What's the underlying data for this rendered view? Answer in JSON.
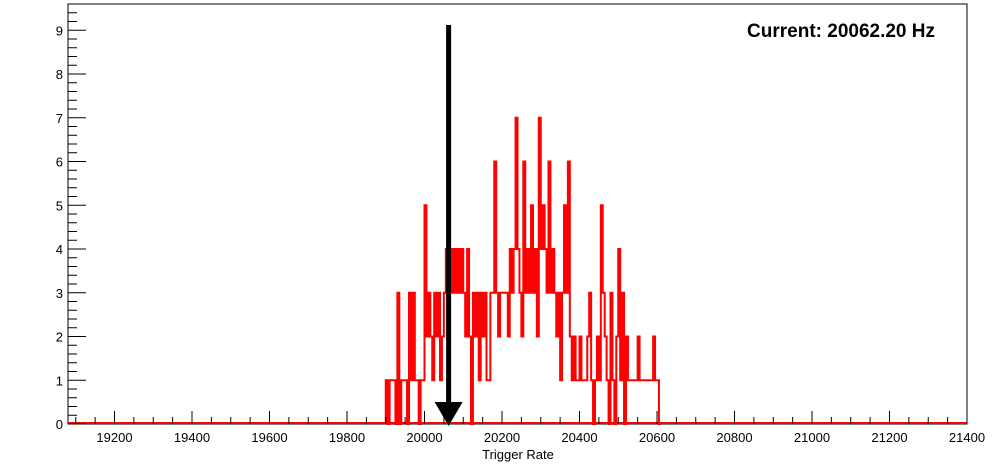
{
  "chart_data": {
    "type": "histogram",
    "title": "",
    "annotation": "Current: 20062.20 Hz",
    "xlabel": "Trigger Rate",
    "ylabel": "",
    "xlim": [
      19080,
      21400
    ],
    "ylim": [
      0,
      9.6
    ],
    "x_ticks": [
      19200,
      19400,
      19600,
      19800,
      20000,
      20200,
      20400,
      20600,
      20800,
      21000,
      21200,
      21400
    ],
    "y_ticks": [
      0,
      1,
      2,
      3,
      4,
      5,
      6,
      7,
      8,
      9
    ],
    "grid": false,
    "legend": "none",
    "marker": {
      "x": 20062.2,
      "label": "current rate arrow"
    },
    "series": [
      {
        "color": "#ff0000",
        "bin_width": 5,
        "bins": [
          {
            "x": 19900,
            "y": 1
          },
          {
            "x": 19905,
            "y": 0
          },
          {
            "x": 19910,
            "y": 1
          },
          {
            "x": 19915,
            "y": 1
          },
          {
            "x": 19920,
            "y": 1
          },
          {
            "x": 19925,
            "y": 0
          },
          {
            "x": 19930,
            "y": 3
          },
          {
            "x": 19935,
            "y": 0
          },
          {
            "x": 19940,
            "y": 1
          },
          {
            "x": 19945,
            "y": 1
          },
          {
            "x": 19950,
            "y": 1
          },
          {
            "x": 19955,
            "y": 0
          },
          {
            "x": 19960,
            "y": 3
          },
          {
            "x": 19965,
            "y": 1
          },
          {
            "x": 19970,
            "y": 3
          },
          {
            "x": 19975,
            "y": 1
          },
          {
            "x": 19980,
            "y": 1
          },
          {
            "x": 19985,
            "y": 0
          },
          {
            "x": 19990,
            "y": 1
          },
          {
            "x": 19995,
            "y": 1
          },
          {
            "x": 20000,
            "y": 5
          },
          {
            "x": 20005,
            "y": 2
          },
          {
            "x": 20010,
            "y": 3
          },
          {
            "x": 20015,
            "y": 2
          },
          {
            "x": 20020,
            "y": 1
          },
          {
            "x": 20025,
            "y": 3
          },
          {
            "x": 20030,
            "y": 2
          },
          {
            "x": 20035,
            "y": 3
          },
          {
            "x": 20040,
            "y": 1
          },
          {
            "x": 20045,
            "y": 2
          },
          {
            "x": 20050,
            "y": 3
          },
          {
            "x": 20055,
            "y": 4
          },
          {
            "x": 20060,
            "y": 3
          },
          {
            "x": 20065,
            "y": 4
          },
          {
            "x": 20070,
            "y": 3
          },
          {
            "x": 20075,
            "y": 4
          },
          {
            "x": 20080,
            "y": 3
          },
          {
            "x": 20085,
            "y": 4
          },
          {
            "x": 20090,
            "y": 3
          },
          {
            "x": 20095,
            "y": 4
          },
          {
            "x": 20100,
            "y": 3
          },
          {
            "x": 20105,
            "y": 2
          },
          {
            "x": 20110,
            "y": 4
          },
          {
            "x": 20115,
            "y": 2
          },
          {
            "x": 20120,
            "y": 0
          },
          {
            "x": 20125,
            "y": 3
          },
          {
            "x": 20130,
            "y": 2
          },
          {
            "x": 20135,
            "y": 3
          },
          {
            "x": 20140,
            "y": 1
          },
          {
            "x": 20145,
            "y": 3
          },
          {
            "x": 20150,
            "y": 2
          },
          {
            "x": 20155,
            "y": 3
          },
          {
            "x": 20160,
            "y": 1
          },
          {
            "x": 20165,
            "y": 1
          },
          {
            "x": 20170,
            "y": 3
          },
          {
            "x": 20175,
            "y": 3
          },
          {
            "x": 20180,
            "y": 6
          },
          {
            "x": 20185,
            "y": 3
          },
          {
            "x": 20190,
            "y": 2
          },
          {
            "x": 20195,
            "y": 3
          },
          {
            "x": 20200,
            "y": 3
          },
          {
            "x": 20205,
            "y": 3
          },
          {
            "x": 20210,
            "y": 3
          },
          {
            "x": 20215,
            "y": 2
          },
          {
            "x": 20220,
            "y": 4
          },
          {
            "x": 20225,
            "y": 3
          },
          {
            "x": 20230,
            "y": 4
          },
          {
            "x": 20235,
            "y": 7
          },
          {
            "x": 20240,
            "y": 4
          },
          {
            "x": 20245,
            "y": 3
          },
          {
            "x": 20250,
            "y": 2
          },
          {
            "x": 20255,
            "y": 6
          },
          {
            "x": 20260,
            "y": 3
          },
          {
            "x": 20265,
            "y": 4
          },
          {
            "x": 20270,
            "y": 3
          },
          {
            "x": 20275,
            "y": 5
          },
          {
            "x": 20280,
            "y": 3
          },
          {
            "x": 20285,
            "y": 4
          },
          {
            "x": 20290,
            "y": 2
          },
          {
            "x": 20295,
            "y": 7
          },
          {
            "x": 20300,
            "y": 4
          },
          {
            "x": 20305,
            "y": 5
          },
          {
            "x": 20310,
            "y": 4
          },
          {
            "x": 20315,
            "y": 3
          },
          {
            "x": 20320,
            "y": 6
          },
          {
            "x": 20325,
            "y": 3
          },
          {
            "x": 20330,
            "y": 4
          },
          {
            "x": 20335,
            "y": 3
          },
          {
            "x": 20340,
            "y": 2
          },
          {
            "x": 20345,
            "y": 3
          },
          {
            "x": 20350,
            "y": 1
          },
          {
            "x": 20355,
            "y": 3
          },
          {
            "x": 20360,
            "y": 5
          },
          {
            "x": 20365,
            "y": 3
          },
          {
            "x": 20370,
            "y": 6
          },
          {
            "x": 20375,
            "y": 2
          },
          {
            "x": 20380,
            "y": 1
          },
          {
            "x": 20385,
            "y": 2
          },
          {
            "x": 20390,
            "y": 1
          },
          {
            "x": 20395,
            "y": 1
          },
          {
            "x": 20400,
            "y": 2
          },
          {
            "x": 20405,
            "y": 1
          },
          {
            "x": 20410,
            "y": 1
          },
          {
            "x": 20415,
            "y": 1
          },
          {
            "x": 20420,
            "y": 2
          },
          {
            "x": 20425,
            "y": 3
          },
          {
            "x": 20430,
            "y": 1
          },
          {
            "x": 20435,
            "y": 0
          },
          {
            "x": 20440,
            "y": 1
          },
          {
            "x": 20445,
            "y": 2
          },
          {
            "x": 20450,
            "y": 1
          },
          {
            "x": 20455,
            "y": 5
          },
          {
            "x": 20460,
            "y": 3
          },
          {
            "x": 20465,
            "y": 2
          },
          {
            "x": 20470,
            "y": 1
          },
          {
            "x": 20475,
            "y": 0
          },
          {
            "x": 20480,
            "y": 3
          },
          {
            "x": 20485,
            "y": 1
          },
          {
            "x": 20490,
            "y": 0
          },
          {
            "x": 20495,
            "y": 2
          },
          {
            "x": 20500,
            "y": 4
          },
          {
            "x": 20505,
            "y": 1
          },
          {
            "x": 20510,
            "y": 3
          },
          {
            "x": 20515,
            "y": 0
          },
          {
            "x": 20520,
            "y": 2
          },
          {
            "x": 20525,
            "y": 1
          },
          {
            "x": 20530,
            "y": 1
          },
          {
            "x": 20535,
            "y": 1
          },
          {
            "x": 20540,
            "y": 1
          },
          {
            "x": 20545,
            "y": 1
          },
          {
            "x": 20550,
            "y": 2
          },
          {
            "x": 20555,
            "y": 1
          },
          {
            "x": 20560,
            "y": 1
          },
          {
            "x": 20565,
            "y": 1
          },
          {
            "x": 20570,
            "y": 1
          },
          {
            "x": 20575,
            "y": 1
          },
          {
            "x": 20580,
            "y": 1
          },
          {
            "x": 20585,
            "y": 1
          },
          {
            "x": 20590,
            "y": 2
          },
          {
            "x": 20595,
            "y": 1
          },
          {
            "x": 20600,
            "y": 1
          },
          {
            "x": 20605,
            "y": 0
          }
        ]
      }
    ]
  }
}
